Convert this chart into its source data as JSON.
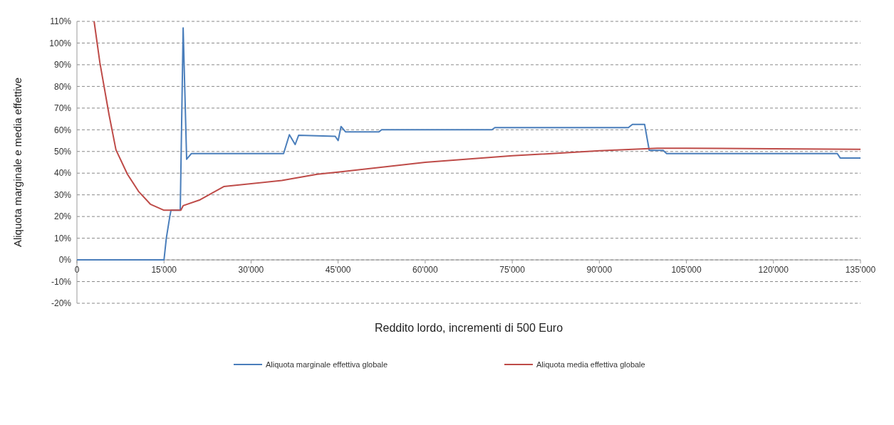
{
  "chart_data": {
    "type": "line",
    "xlabel": "Reddito lordo, incrementi di 500 Euro",
    "ylabel": "Aliquota marginale e media effettive",
    "xlim": [
      0,
      135000
    ],
    "xticks": [
      0,
      {
        "value": 15000,
        "label": "15'000"
      },
      {
        "value": 30000,
        "label": "30'000"
      },
      {
        "value": 45000,
        "label": "45'000"
      },
      {
        "value": 60000,
        "label": "60'000"
      },
      {
        "value": 75000,
        "label": "75'000"
      },
      {
        "value": 90000,
        "label": "90'000"
      },
      {
        "value": 105000,
        "label": "105'000"
      },
      {
        "value": 120000,
        "label": "120'000"
      },
      {
        "value": 135000,
        "label": "135'000"
      }
    ],
    "ylim": [
      -20,
      110
    ],
    "yticks": [
      {
        "value": -20,
        "label": "-20%"
      },
      {
        "value": -10,
        "label": "-10%"
      },
      {
        "value": 0,
        "label": "0%"
      },
      {
        "value": 10,
        "label": "10%"
      },
      {
        "value": 20,
        "label": "20%"
      },
      {
        "value": 30,
        "label": "30%"
      },
      {
        "value": 40,
        "label": "40%"
      },
      {
        "value": 50,
        "label": "50%"
      },
      {
        "value": 60,
        "label": "60%"
      },
      {
        "value": 70,
        "label": "70%"
      },
      {
        "value": 80,
        "label": "80%"
      },
      {
        "value": 90,
        "label": "90%"
      },
      {
        "value": 100,
        "label": "100%"
      },
      {
        "value": 110,
        "label": "110%"
      }
    ],
    "grid": "y",
    "legend": "bottom",
    "marker": "none",
    "line_style": "solid",
    "series": [
      {
        "name": "Aliquota marginale effettiva globale",
        "color": "#4a7ebb",
        "x": [
          0,
          15000,
          15400,
          16000,
          16200,
          17800,
          18300,
          18900,
          19700,
          35600,
          36600,
          37600,
          38200,
          44500,
          45000,
          45500,
          46300,
          52000,
          52500,
          71500,
          72000,
          95000,
          95700,
          97800,
          98600,
          101000,
          101600,
          131000,
          131500,
          135000
        ],
        "values": [
          0,
          0,
          10,
          20,
          22.9,
          22.9,
          107,
          46.4,
          49,
          49,
          57.7,
          53.2,
          57.5,
          57,
          55,
          61.5,
          59,
          59,
          60,
          60,
          61,
          61,
          62.5,
          62.5,
          50.5,
          50.5,
          49,
          49,
          47,
          47
        ]
      },
      {
        "name": "Aliquota media effettiva globale",
        "color": "#be4b48",
        "x": [
          2960,
          3950,
          5530,
          6720,
          8700,
          10670,
          12650,
          15000,
          17900,
          18300,
          21200,
          25300,
          35300,
          41400,
          45000,
          60000,
          75000,
          90000,
          100000,
          105000,
          120000,
          135000
        ],
        "values": [
          110,
          91,
          67,
          50.8,
          39.5,
          31.4,
          25.7,
          22.9,
          22.9,
          25,
          27.7,
          33.8,
          36.6,
          39.5,
          40.5,
          45,
          48,
          50.3,
          51.5,
          51.5,
          51.2,
          51
        ]
      }
    ]
  }
}
